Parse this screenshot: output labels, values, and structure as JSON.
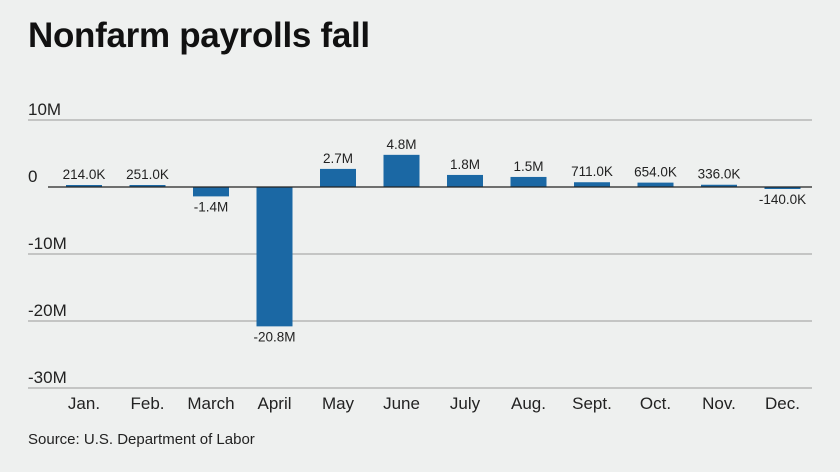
{
  "title": "Nonfarm payrolls fall",
  "source": "Source: U.S. Department of Labor",
  "chart_data": {
    "type": "bar",
    "title": "Nonfarm payrolls fall",
    "categories": [
      "Jan.",
      "Feb.",
      "March",
      "April",
      "May",
      "June",
      "July",
      "Aug.",
      "Sept.",
      "Oct.",
      "Nov.",
      "Dec."
    ],
    "values": [
      0.214,
      0.251,
      -1.4,
      -20.8,
      2.7,
      4.8,
      1.8,
      1.5,
      0.711,
      0.654,
      0.336,
      -0.14
    ],
    "data_labels": [
      "214.0K",
      "251.0K",
      "-1.4M",
      "-20.8M",
      "2.7M",
      "4.8M",
      "1.8M",
      "1.5M",
      "711.0K",
      "654.0K",
      "336.0K",
      "-140.0K"
    ],
    "y_unit": "millions",
    "yticks": [
      10,
      0,
      -10,
      -20,
      -30
    ],
    "ytick_labels": [
      "10M",
      "0",
      "-10M",
      "-20M",
      "-30M"
    ],
    "ylim": [
      -30,
      10
    ],
    "xlabel": "",
    "ylabel": "",
    "grid": true,
    "legend": "none",
    "bar_color": "#1b68a4",
    "grid_color": "#9a9a9a",
    "zero_line_color": "#222222"
  }
}
